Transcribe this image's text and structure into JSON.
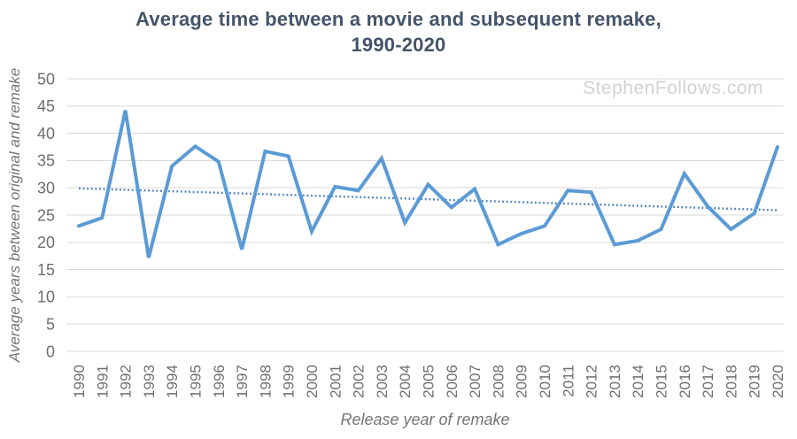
{
  "title": {
    "line1": "Average time between a movie and subsequent remake,",
    "line2": "1990-2020"
  },
  "watermark": "StephenFollows.com",
  "chart_data": {
    "type": "line",
    "title": "Average time between a movie and subsequent remake, 1990-2020",
    "xlabel": "Release year of remake",
    "ylabel": "Average years between original and remake",
    "categories": [
      "1990",
      "1991",
      "1992",
      "1993",
      "1994",
      "1995",
      "1996",
      "1997",
      "1998",
      "1999",
      "2000",
      "2001",
      "2002",
      "2003",
      "2004",
      "2005",
      "2006",
      "2007",
      "2008",
      "2009",
      "2010",
      "2011",
      "2012",
      "2013",
      "2014",
      "2015",
      "2016",
      "2017",
      "2018",
      "2019",
      "2020"
    ],
    "values": [
      23,
      24.5,
      44.2,
      17.2,
      34,
      37.6,
      34.8,
      18.7,
      36.7,
      35.8,
      22,
      30.2,
      29.5,
      35.4,
      23.6,
      30.6,
      26.4,
      29.8,
      19.6,
      21.6,
      23,
      29.5,
      29.2,
      19.6,
      20.3,
      22.4,
      32.6,
      26.6,
      22.4,
      25.3,
      37.5
    ],
    "yticks": [
      0,
      5,
      10,
      15,
      20,
      25,
      30,
      35,
      40,
      45,
      50
    ],
    "ylim": [
      0,
      50
    ],
    "grid": true,
    "legend": "none",
    "trendline": {
      "style": "dotted",
      "start_value": 29.9,
      "end_value": 25.9
    },
    "colors": {
      "line": "#5B9BD5",
      "trend": "#4a80c4",
      "title": "#44546A",
      "axis_text": "#757575",
      "tick_text": "#6e6e6e",
      "grid": "#d9d9d9",
      "watermark": "#d2d2d2"
    }
  }
}
